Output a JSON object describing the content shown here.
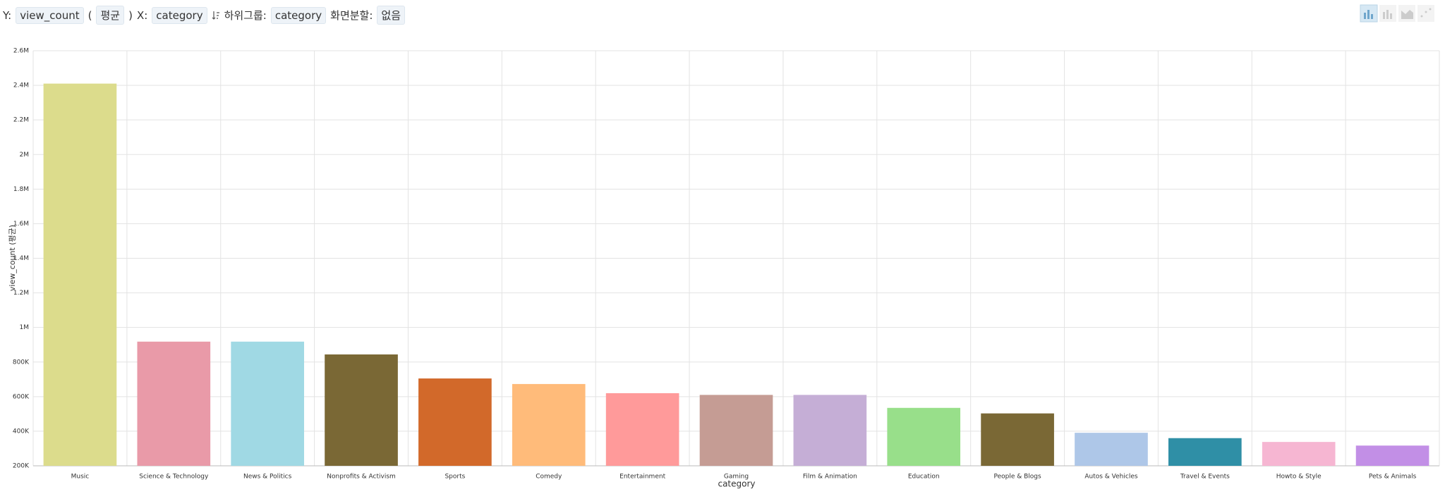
{
  "toolbar": {
    "y_prefix": "Y:",
    "y_field": "view_count",
    "open_paren": "(",
    "aggregate": "평균",
    "close_paren": ")",
    "x_prefix": "X:",
    "x_field": "category",
    "subgroup_prefix": "하위그룹:",
    "subgroup_field": "category",
    "split_prefix": "화면분할:",
    "split_value": "없음"
  },
  "chart_data": {
    "type": "bar",
    "x_label": "category",
    "y_label": "view_count (평균)",
    "categories": [
      "Music",
      "Science & Technology",
      "News & Politics",
      "Nonprofits & Activism",
      "Sports",
      "Comedy",
      "Entertainment",
      "Gaming",
      "Film & Animation",
      "Education",
      "People & Blogs",
      "Autos & Vehicles",
      "Travel & Events",
      "Howto & Style",
      "Pets & Animals"
    ],
    "values": [
      2410000,
      918000,
      918000,
      844000,
      705000,
      673000,
      620000,
      610000,
      610000,
      535000,
      503000,
      391000,
      360000,
      338000,
      317000
    ],
    "colors": [
      "#dcdc8c",
      "#e99aa8",
      "#a0d9e4",
      "#7a6835",
      "#d2692a",
      "#ffbb7a",
      "#ff9a9a",
      "#c59c94",
      "#c5aed6",
      "#98df8a",
      "#7a6835",
      "#aec7e8",
      "#2f8fa6",
      "#f6b6d2",
      "#c28fe6"
    ],
    "ylim": [
      200000,
      2600000
    ],
    "yticks": [
      {
        "value": 200000,
        "label": "200K"
      },
      {
        "value": 400000,
        "label": "400K"
      },
      {
        "value": 600000,
        "label": "600K"
      },
      {
        "value": 800000,
        "label": "800K"
      },
      {
        "value": 1000000,
        "label": "1M"
      },
      {
        "value": 1200000,
        "label": "1.2M"
      },
      {
        "value": 1400000,
        "label": "1.4M"
      },
      {
        "value": 1600000,
        "label": "1.6M"
      },
      {
        "value": 1800000,
        "label": "1.8M"
      },
      {
        "value": 2000000,
        "label": "2M"
      },
      {
        "value": 2200000,
        "label": "2.2M"
      },
      {
        "value": 2400000,
        "label": "2.4M"
      },
      {
        "value": 2600000,
        "label": "2.6M"
      }
    ],
    "grid": true
  }
}
